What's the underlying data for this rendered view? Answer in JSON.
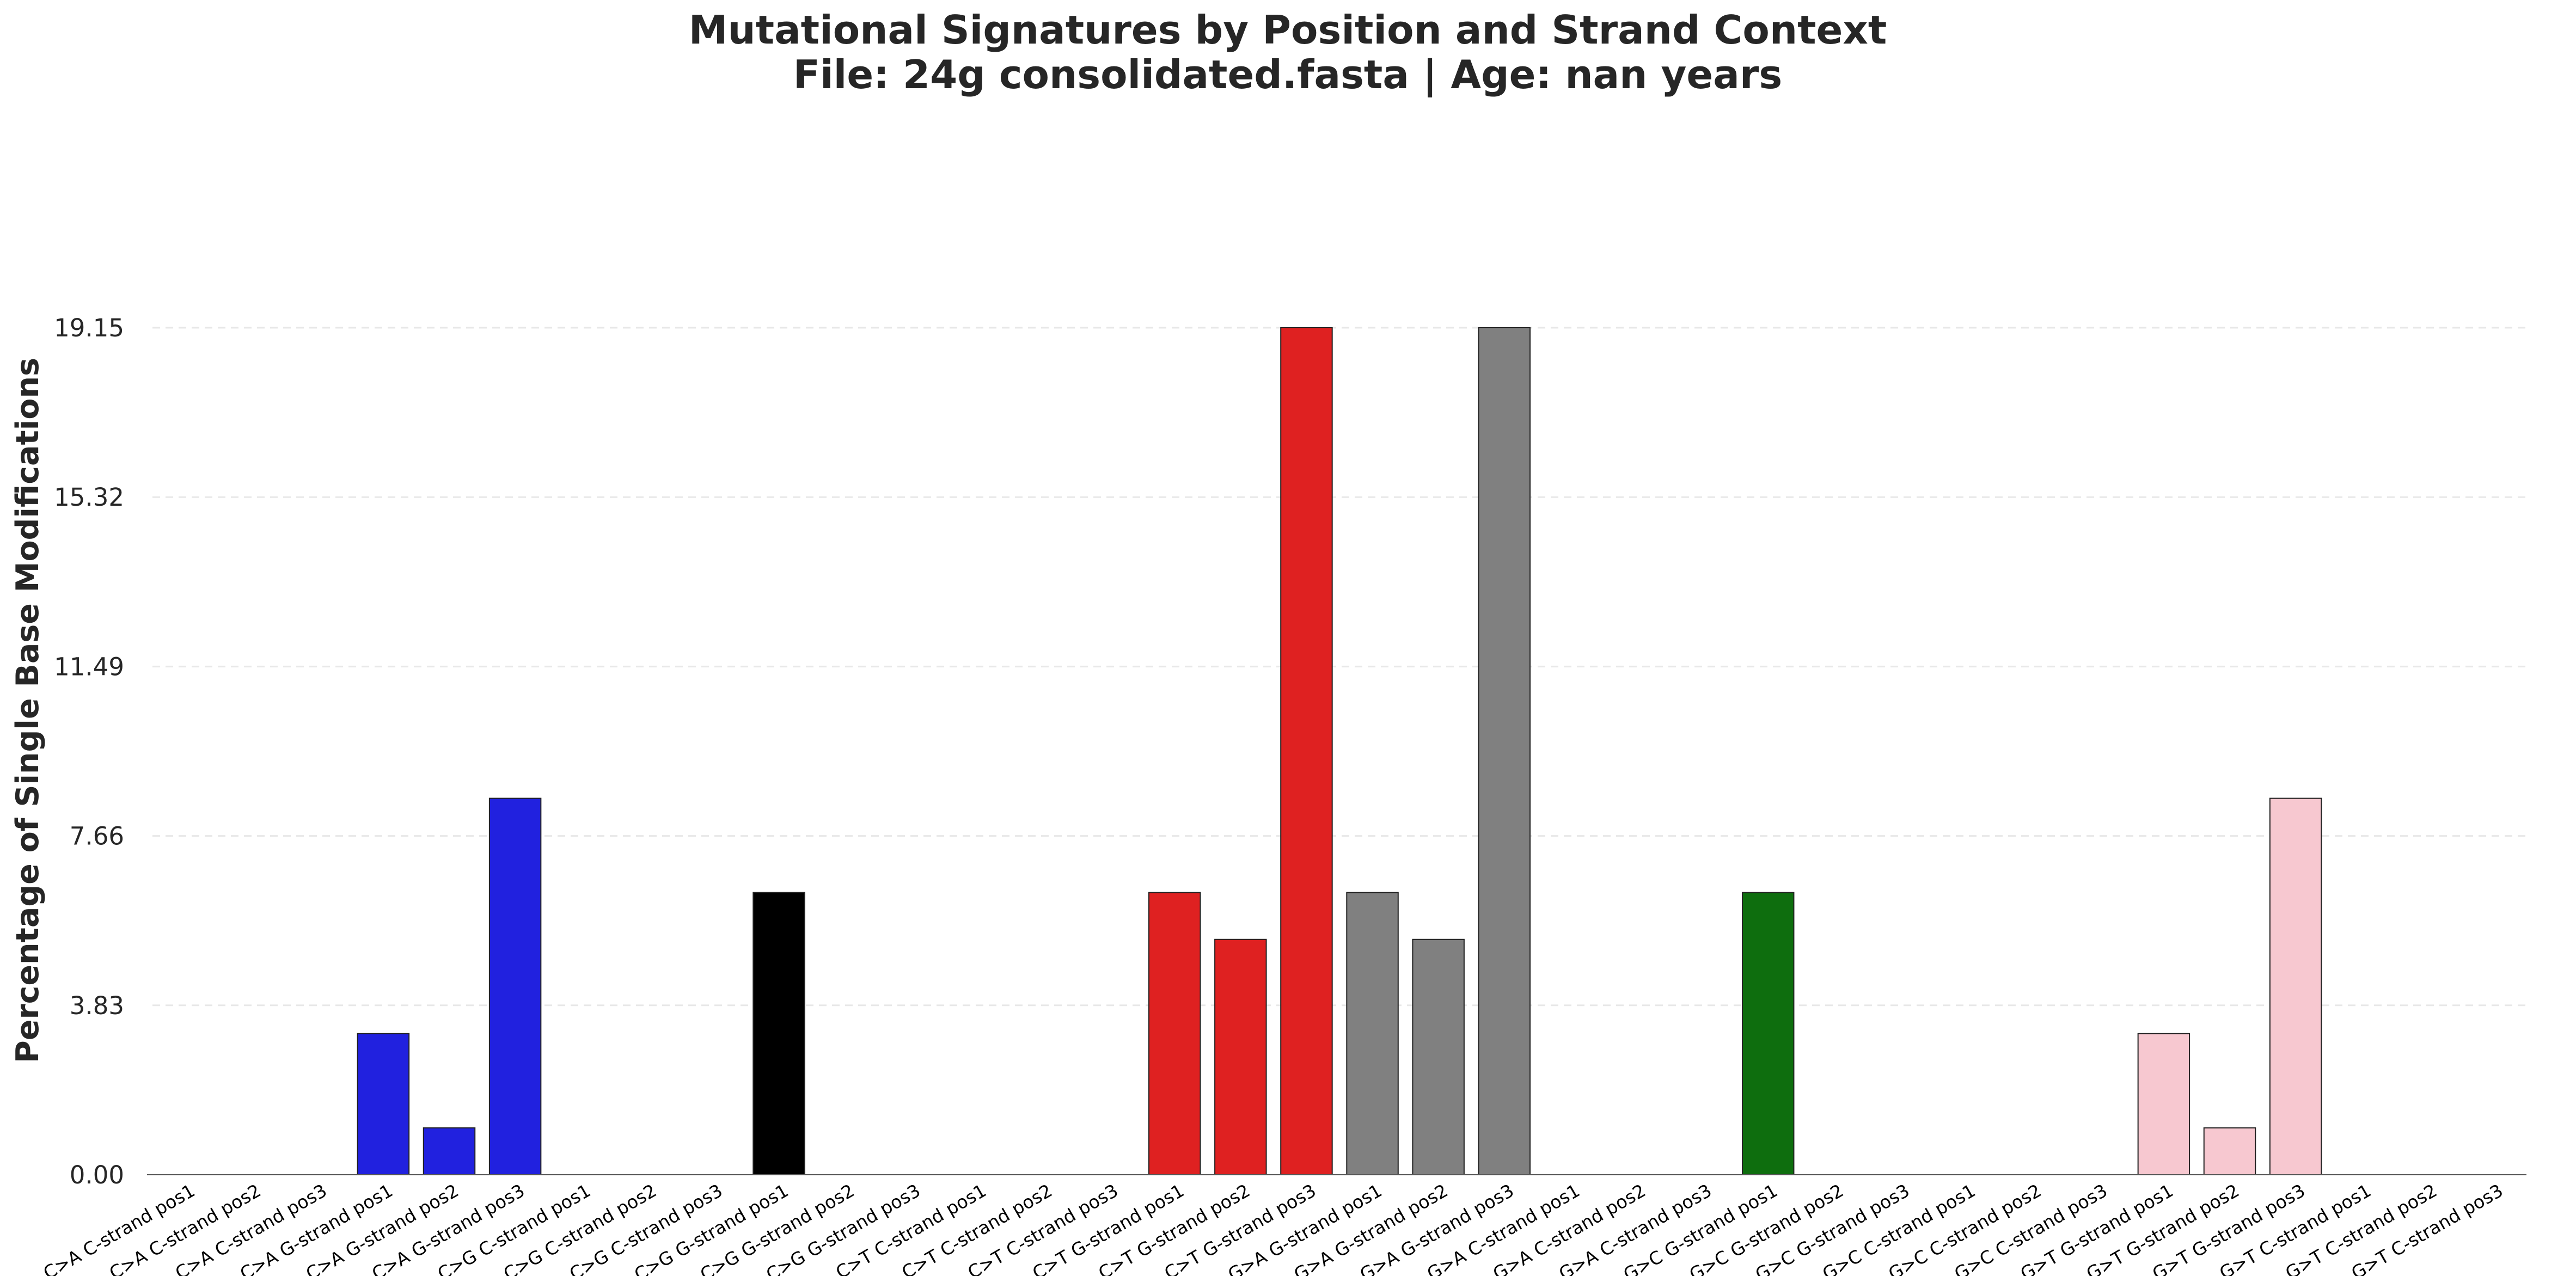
{
  "chart_data": {
    "type": "bar",
    "title": [
      "Mutational Signatures by Position and Strand Context",
      "File: 24g consolidated.fasta | Age: nan years"
    ],
    "xlabel": "",
    "ylabel": "Percentage of Single Base Modifications",
    "ylim": [
      0,
      19.15
    ],
    "yticks": [
      "0.00",
      "3.83",
      "7.66",
      "11.49",
      "15.32",
      "19.15"
    ],
    "grid": "horizontal dashed",
    "legend": "none",
    "categories": [
      "C>A C-strand pos1",
      "C>A C-strand pos2",
      "C>A C-strand pos3",
      "C>A G-strand pos1",
      "C>A G-strand pos2",
      "C>A G-strand pos3",
      "C>G C-strand pos1",
      "C>G C-strand pos2",
      "C>G C-strand pos3",
      "C>G G-strand pos1",
      "C>G G-strand pos2",
      "C>G G-strand pos3",
      "C>T C-strand pos1",
      "C>T C-strand pos2",
      "C>T C-strand pos3",
      "C>T G-strand pos1",
      "C>T G-strand pos2",
      "C>T G-strand pos3",
      "G>A G-strand pos1",
      "G>A G-strand pos2",
      "G>A G-strand pos3",
      "G>A C-strand pos1",
      "G>A C-strand pos2",
      "G>A C-strand pos3",
      "G>C G-strand pos1",
      "G>C G-strand pos2",
      "G>C G-strand pos3",
      "G>C C-strand pos1",
      "G>C C-strand pos2",
      "G>C C-strand pos3",
      "G>T G-strand pos1",
      "G>T G-strand pos2",
      "G>T G-strand pos3",
      "G>T C-strand pos1",
      "G>T C-strand pos2",
      "G>T C-strand pos3"
    ],
    "values": [
      0,
      0,
      0,
      3.19,
      1.06,
      8.51,
      0,
      0,
      0,
      6.38,
      0,
      0,
      0,
      0,
      0,
      6.38,
      5.32,
      19.15,
      6.38,
      5.32,
      19.15,
      0,
      0,
      0,
      6.38,
      0,
      0,
      0,
      0,
      0,
      3.19,
      1.06,
      8.51,
      0,
      0,
      0
    ],
    "group_colors": [
      "#2121df",
      "#000000",
      "#df2121",
      "#808080",
      "#0e6e0e",
      "#f7c8d0"
    ]
  }
}
